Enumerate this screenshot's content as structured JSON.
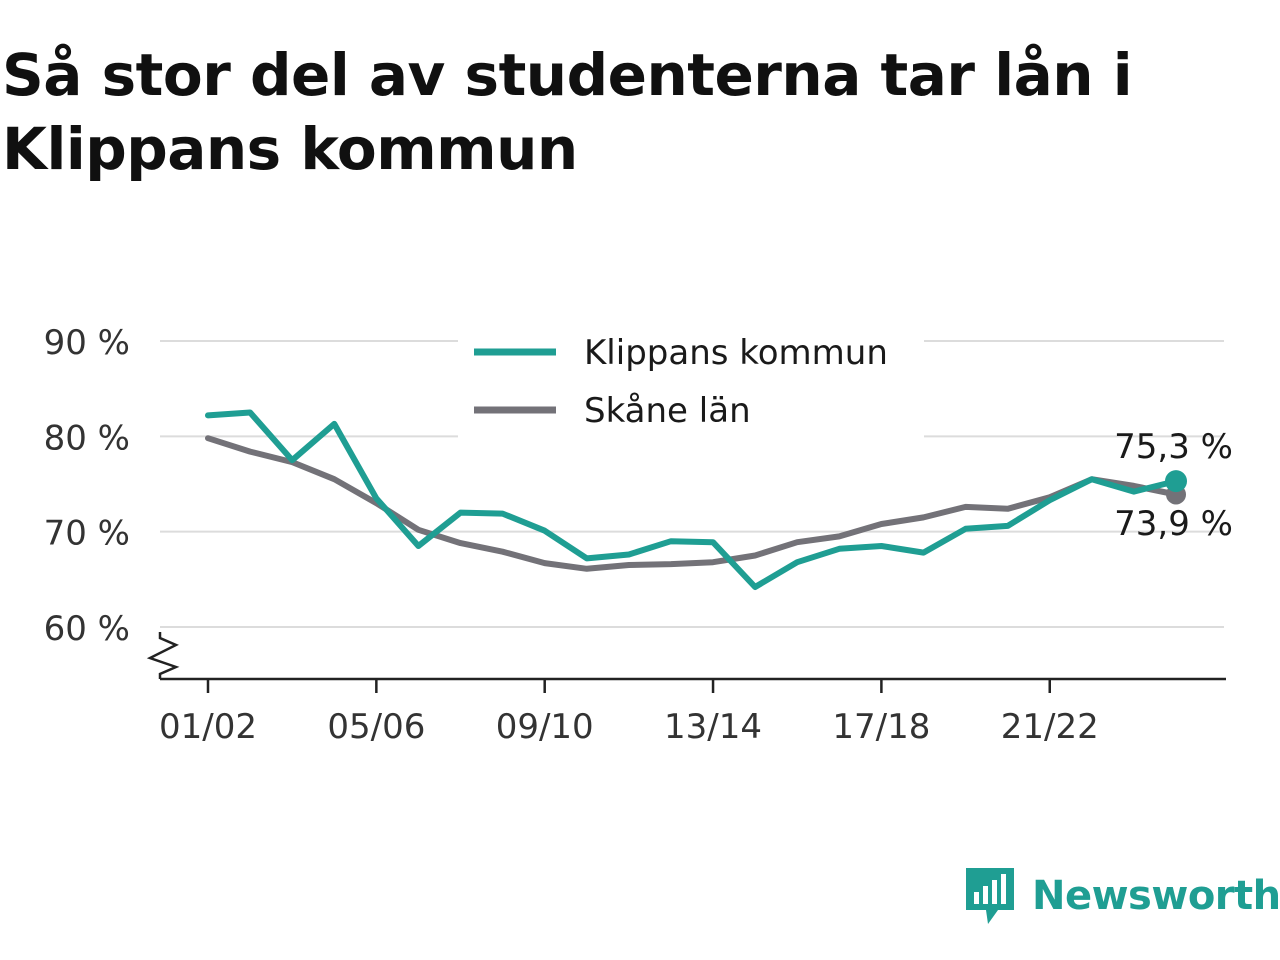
{
  "title": "Så stor del av studenterna tar lån i Klippans kommun",
  "brand": {
    "name": "Newsworthy",
    "icon": "newsworthy-logo-icon",
    "color": "#1f9e93"
  },
  "chart_data": {
    "type": "line",
    "title": "Så stor del av studenterna tar lån i Klippans kommun",
    "xlabel": "",
    "ylabel": "",
    "ylim": [
      55,
      90
    ],
    "y_break": true,
    "yticks": [
      60,
      70,
      80,
      90
    ],
    "ytick_labels": [
      "60 %",
      "70 %",
      "80 %",
      "90 %"
    ],
    "x": [
      "01/02",
      "02/03",
      "03/04",
      "04/05",
      "05/06",
      "06/07",
      "07/08",
      "08/09",
      "09/10",
      "10/11",
      "11/12",
      "12/13",
      "13/14",
      "14/15",
      "15/16",
      "16/17",
      "17/18",
      "18/19",
      "19/20",
      "20/21",
      "21/22",
      "22/23",
      "23/24",
      "24/25"
    ],
    "xticks": [
      "01/02",
      "05/06",
      "09/10",
      "13/14",
      "17/18",
      "21/22"
    ],
    "grid": true,
    "legend": "top-center",
    "series": [
      {
        "name": "Klippans kommun",
        "color": "#1f9e93",
        "values": [
          82.2,
          82.5,
          77.5,
          81.3,
          73.5,
          68.5,
          72.0,
          71.9,
          70.1,
          67.2,
          67.6,
          69.0,
          68.9,
          64.2,
          66.8,
          68.2,
          68.5,
          67.8,
          70.3,
          70.6,
          73.3,
          75.5,
          74.2,
          75.3
        ],
        "end_label": "75,3 %"
      },
      {
        "name": "Skåne län",
        "color": "#737278",
        "values": [
          79.8,
          78.4,
          77.3,
          75.5,
          73.0,
          70.2,
          68.8,
          67.9,
          66.7,
          66.1,
          66.5,
          66.6,
          66.8,
          67.5,
          68.9,
          69.5,
          70.8,
          71.5,
          72.6,
          72.4,
          73.6,
          75.5,
          74.8,
          73.9
        ],
        "end_label": "73,9 %"
      }
    ]
  }
}
